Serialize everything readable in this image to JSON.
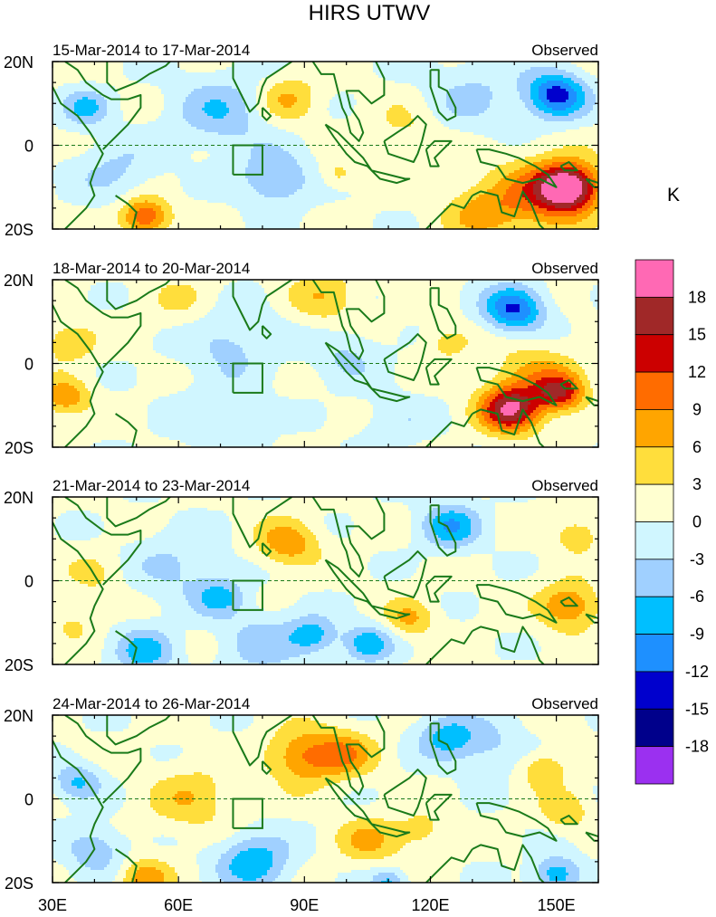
{
  "title": "HIRS UTWV",
  "unit_label": "K",
  "panels": [
    {
      "date_range": "15-Mar-2014 to 17-Mar-2014",
      "label": "Observed",
      "anomalies": [
        {
          "lon": 153,
          "lat": -10,
          "amp": 19,
          "s": 5
        },
        {
          "lon": 146,
          "lat": -12,
          "amp": 9,
          "s": 8
        },
        {
          "lon": 132,
          "lat": -16,
          "amp": 6,
          "s": 6
        },
        {
          "lon": 52,
          "lat": -17,
          "amp": 12,
          "s": 4
        },
        {
          "lon": 86,
          "lat": 11,
          "amp": 6,
          "s": 5
        },
        {
          "lon": 98,
          "lat": -7,
          "amp": 4,
          "s": 3
        },
        {
          "lon": 114,
          "lat": 4,
          "amp": 3,
          "s": 6
        },
        {
          "lon": 150,
          "lat": 12,
          "amp": -14,
          "s": 5
        },
        {
          "lon": 70,
          "lat": 8,
          "amp": -6,
          "s": 8
        },
        {
          "lon": 83,
          "lat": -8,
          "amp": -7,
          "s": 6
        },
        {
          "lon": 38,
          "lat": 9,
          "amp": -7,
          "s": 4
        },
        {
          "lon": 130,
          "lat": 12,
          "amp": -4,
          "s": 8
        },
        {
          "lon": 45,
          "lat": -6,
          "amp": -4,
          "s": 7
        }
      ]
    },
    {
      "date_range": "18-Mar-2014 to 20-Mar-2014",
      "label": "Observed",
      "anomalies": [
        {
          "lon": 139,
          "lat": -11,
          "amp": 17,
          "s": 5
        },
        {
          "lon": 151,
          "lat": -7,
          "amp": 12,
          "s": 4
        },
        {
          "lon": 145,
          "lat": -3,
          "amp": 6,
          "s": 7
        },
        {
          "lon": 33,
          "lat": -8,
          "amp": 8,
          "s": 4
        },
        {
          "lon": 34,
          "lat": 5,
          "amp": 6,
          "s": 4
        },
        {
          "lon": 95,
          "lat": 16,
          "amp": 5,
          "s": 6
        },
        {
          "lon": 124,
          "lat": 5,
          "amp": 4,
          "s": 4
        },
        {
          "lon": 62,
          "lat": 14,
          "amp": 3,
          "s": 7
        },
        {
          "lon": 140,
          "lat": 13,
          "amp": -13,
          "s": 5
        },
        {
          "lon": 72,
          "lat": 6,
          "amp": -5,
          "s": 8
        },
        {
          "lon": 100,
          "lat": 2,
          "amp": -4,
          "s": 6
        },
        {
          "lon": 70,
          "lat": -14,
          "amp": -3,
          "s": 8
        },
        {
          "lon": 112,
          "lat": -14,
          "amp": -3,
          "s": 6
        }
      ]
    },
    {
      "date_range": "21-Mar-2014 to 23-Mar-2014",
      "label": "Observed",
      "anomalies": [
        {
          "lon": 153,
          "lat": -6,
          "amp": 9,
          "s": 5
        },
        {
          "lon": 86,
          "lat": 9,
          "amp": 8,
          "s": 5
        },
        {
          "lon": 115,
          "lat": -9,
          "amp": 6,
          "s": 4
        },
        {
          "lon": 155,
          "lat": 11,
          "amp": 5,
          "s": 4
        },
        {
          "lon": 40,
          "lat": 1,
          "amp": 3,
          "s": 5
        },
        {
          "lon": 35,
          "lat": -10,
          "amp": 3,
          "s": 4
        },
        {
          "lon": 125,
          "lat": 13,
          "amp": -9,
          "s": 5
        },
        {
          "lon": 52,
          "lat": -17,
          "amp": -8,
          "s": 5
        },
        {
          "lon": 70,
          "lat": -4,
          "amp": -7,
          "s": 4
        },
        {
          "lon": 92,
          "lat": -13,
          "amp": -8,
          "s": 4
        },
        {
          "lon": 105,
          "lat": -15,
          "amp": -9,
          "s": 4
        },
        {
          "lon": 60,
          "lat": 3,
          "amp": -4,
          "s": 8
        },
        {
          "lon": 80,
          "lat": -15,
          "amp": -5,
          "s": 7
        }
      ]
    },
    {
      "date_range": "24-Mar-2014 to 26-Mar-2014",
      "label": "Observed",
      "anomalies": [
        {
          "lon": 90,
          "lat": 10,
          "amp": 9,
          "s": 6
        },
        {
          "lon": 100,
          "lat": 11,
          "amp": 7,
          "s": 5
        },
        {
          "lon": 63,
          "lat": 0,
          "amp": 5,
          "s": 7
        },
        {
          "lon": 105,
          "lat": -10,
          "amp": 6,
          "s": 5
        },
        {
          "lon": 147,
          "lat": 7,
          "amp": 6,
          "s": 4
        },
        {
          "lon": 152,
          "lat": -3,
          "amp": 5,
          "s": 4
        },
        {
          "lon": 118,
          "lat": -8,
          "amp": 4,
          "s": 5
        },
        {
          "lon": 52,
          "lat": -19,
          "amp": 8,
          "s": 4
        },
        {
          "lon": 124,
          "lat": 15,
          "amp": -8,
          "s": 5
        },
        {
          "lon": 78,
          "lat": -15,
          "amp": -9,
          "s": 6
        },
        {
          "lon": 36,
          "lat": 4,
          "amp": -7,
          "s": 4
        },
        {
          "lon": 40,
          "lat": -12,
          "amp": -6,
          "s": 5
        },
        {
          "lon": 150,
          "lat": -18,
          "amp": -9,
          "s": 4
        },
        {
          "lon": 135,
          "lat": 12,
          "amp": -4,
          "s": 6
        },
        {
          "lon": 110,
          "lat": -20,
          "amp": -7,
          "s": 3
        }
      ]
    }
  ],
  "y_ticks": [
    "20N",
    "0",
    "20S"
  ],
  "x_ticks": [
    "30E",
    "60E",
    "90E",
    "120E",
    "150E"
  ],
  "map_extent": {
    "lon_min": 30,
    "lon_max": 160,
    "lat_min": -20,
    "lat_max": 20
  },
  "colorbar": {
    "labels": [
      "18",
      "15",
      "12",
      "9",
      "6",
      "3",
      "0",
      "-3",
      "-6",
      "-9",
      "-12",
      "-15",
      "-18"
    ],
    "levels": [
      -18,
      -15,
      -12,
      -9,
      -6,
      -3,
      0,
      3,
      6,
      9,
      12,
      15,
      18
    ],
    "colors": [
      "#9b30f0",
      "#00008b",
      "#0000cd",
      "#1e90ff",
      "#00bfff",
      "#a0d0ff",
      "#d0f6ff",
      "#ffffd0",
      "#ffde3c",
      "#ffa500",
      "#ff6c00",
      "#cc0000",
      "#a02828",
      "#ff69b4"
    ]
  },
  "colors": {
    "coast": "#1a7a1a",
    "equator": "#1a7a1a"
  }
}
